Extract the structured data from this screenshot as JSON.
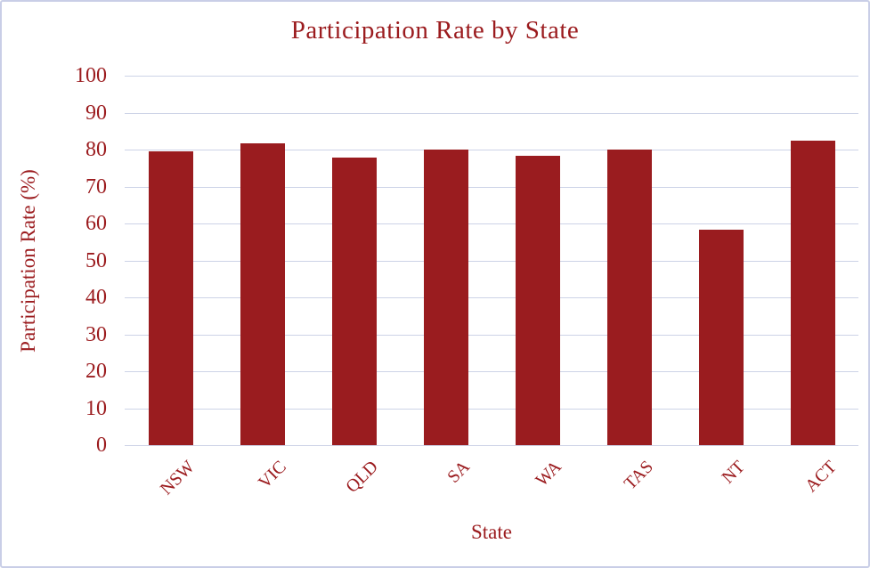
{
  "chart_data": {
    "type": "bar",
    "title": "Participation Rate by State",
    "xlabel": "State",
    "ylabel": "Participation Rate (%)",
    "categories": [
      "NSW",
      "VIC",
      "QLD",
      "SA",
      "WA",
      "TAS",
      "NT",
      "ACT"
    ],
    "values": [
      79.5,
      81.7,
      77.9,
      79.9,
      78.4,
      79.9,
      58.2,
      82.5
    ],
    "ylim": [
      0,
      100
    ],
    "ytick_step": 10,
    "ytick_labels": [
      "0",
      "10",
      "20",
      "30",
      "40",
      "50",
      "60",
      "70",
      "80",
      "90",
      "100"
    ],
    "grid": "horizontal",
    "legend": "none",
    "bar_color": "#9a1c1f",
    "text_color": "#9b1b1e",
    "gridline_color": "#cdd3e7",
    "frame_border_color": "#c9cee7",
    "background_color": "#ffffff"
  }
}
